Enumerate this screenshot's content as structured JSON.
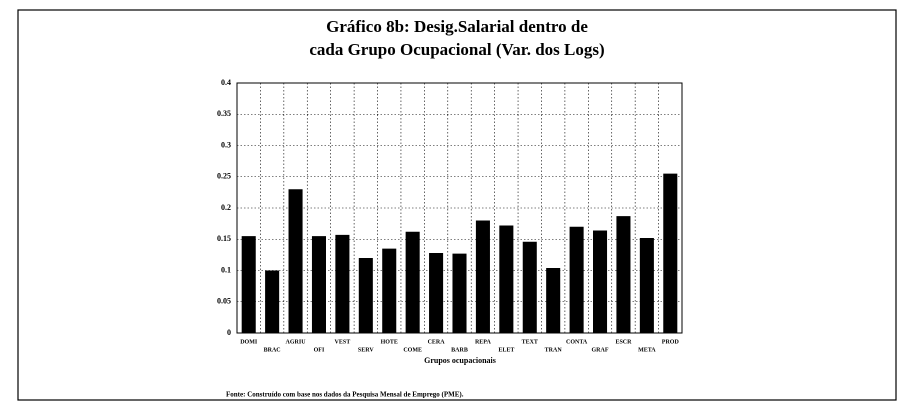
{
  "chart_data": {
    "type": "bar",
    "title": [
      "Gráfico 8b: Desig.Salarial dentro de",
      "cada Grupo Ocupacional (Var. dos Logs)"
    ],
    "categories": [
      "DOMI",
      "BRAC",
      "AGRIU",
      "OFI",
      "VEST",
      "SERV",
      "HOTE",
      "COME",
      "CERA",
      "BARB",
      "REPA",
      "ELET",
      "TEXT",
      "TRAN",
      "CONTA",
      "GRAF",
      "ESCR",
      "META",
      "PROD"
    ],
    "values": [
      0.155,
      0.1,
      0.23,
      0.155,
      0.157,
      0.12,
      0.135,
      0.162,
      0.128,
      0.127,
      0.18,
      0.172,
      0.146,
      0.104,
      0.17,
      0.164,
      0.187,
      0.152,
      0.255
    ],
    "color": "#000000",
    "xlabel": "Grupos ocupacionais",
    "ylim": [
      0,
      0.4
    ],
    "yticks": [
      0,
      0.05,
      0.1,
      0.15,
      0.2,
      0.25,
      0.3,
      0.35,
      0.4
    ],
    "grid": true,
    "source": "Fonte: Construído com base nos dados da Pesquisa Mensal de Emprego (PME)."
  }
}
